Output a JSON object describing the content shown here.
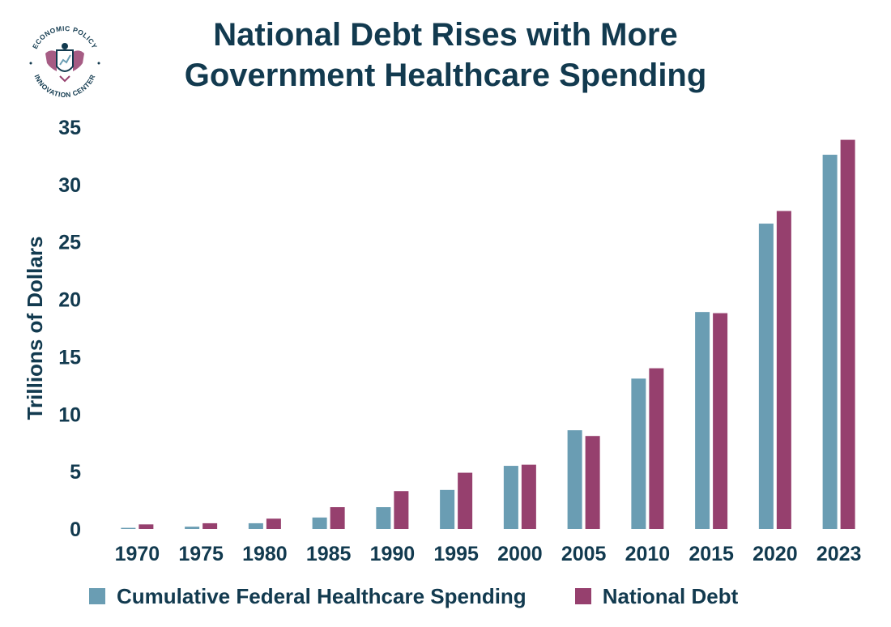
{
  "logo": {
    "text_top": "ECONOMIC POLICY",
    "text_bottom": "INNOVATION CENTER",
    "icon": "eagle-shield-icon"
  },
  "chart_data": {
    "type": "bar",
    "title_lines": [
      "National Debt Rises with More",
      "Government Healthcare Spending"
    ],
    "xlabel": "",
    "ylabel": "Trillions of Dollars",
    "ylim": [
      0,
      35
    ],
    "yticks": [
      0,
      5,
      10,
      15,
      20,
      25,
      30,
      35
    ],
    "grid": false,
    "legend_position": "bottom",
    "categories": [
      "1970",
      "1975",
      "1980",
      "1985",
      "1990",
      "1995",
      "2000",
      "2005",
      "2010",
      "2015",
      "2020",
      "2023"
    ],
    "series": [
      {
        "name": "Cumulative Federal Healthcare Spending",
        "color": "#6a9db3",
        "values": [
          0.1,
          0.2,
          0.5,
          1.0,
          1.9,
          3.4,
          5.5,
          8.6,
          13.1,
          18.9,
          26.6,
          32.6
        ]
      },
      {
        "name": "National Debt",
        "color": "#96406e",
        "values": [
          0.4,
          0.5,
          0.9,
          1.9,
          3.3,
          4.9,
          5.6,
          8.1,
          14.0,
          18.8,
          27.7,
          33.9
        ]
      }
    ]
  }
}
